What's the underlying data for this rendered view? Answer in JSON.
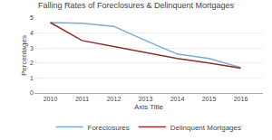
{
  "chart_data": {
    "type": "line",
    "title": "Falling Rates of Foreclosures & Delinquent Mortgages",
    "xlabel": "Axis Title",
    "ylabel": "Percentages",
    "x": [
      2010,
      2011,
      2012,
      2013,
      2014,
      2015,
      2016
    ],
    "series": [
      {
        "name": "Foreclosures",
        "color": "#7aadd4",
        "values": [
          4.7,
          4.65,
          4.45,
          3.5,
          2.6,
          2.3,
          1.7
        ]
      },
      {
        "name": "Delinquent Mortgages",
        "color": "#8b3030",
        "values": [
          4.7,
          3.5,
          3.1,
          2.7,
          2.3,
          2.0,
          1.65
        ]
      }
    ],
    "xlim": [
      2009.5,
      2016.7
    ],
    "xticks": [
      2010,
      2011,
      2012,
      2013,
      2014,
      2015,
      2016
    ],
    "ylim": [
      0,
      5
    ],
    "yticks": [
      0,
      1,
      2,
      3,
      4,
      5
    ],
    "grid": true,
    "legend": "bottom"
  }
}
